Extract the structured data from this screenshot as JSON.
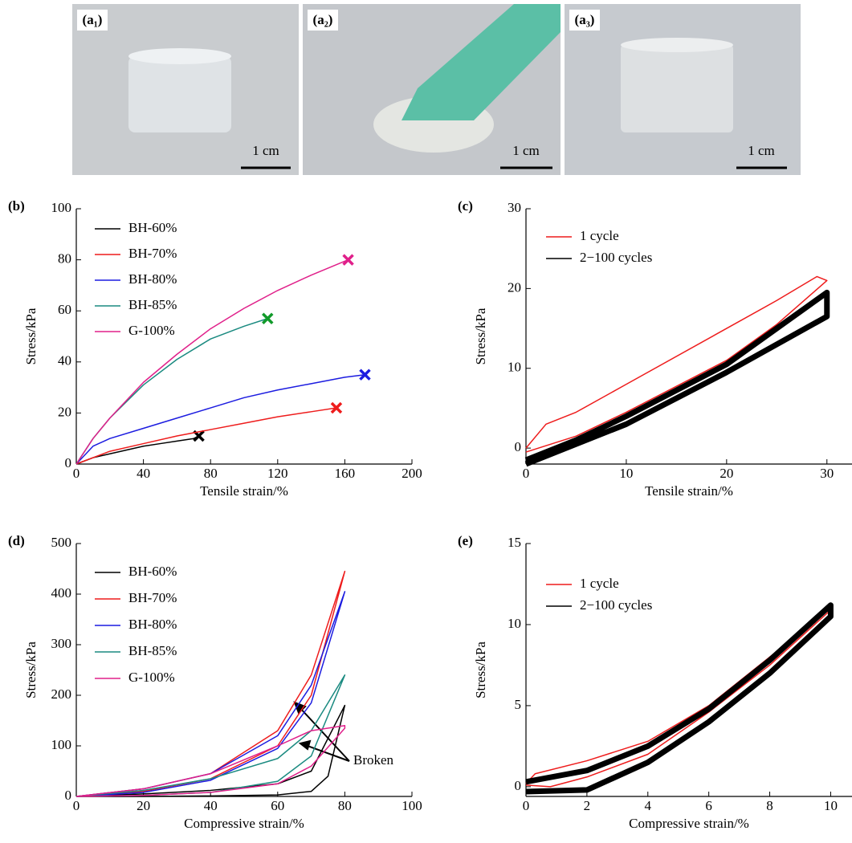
{
  "photos": [
    {
      "label": "(a₁)",
      "scale_bar": "1 cm"
    },
    {
      "label": "(a₂)",
      "scale_bar": "1 cm"
    },
    {
      "label": "(a₃)",
      "scale_bar": "1 cm"
    }
  ],
  "chart_data": [
    {
      "type": "line",
      "panel_label": "(b)",
      "x_label": "Tensile strain/%",
      "y_label": "Stress/kPa",
      "xlim": [
        0,
        200
      ],
      "xticks": [
        0,
        40,
        80,
        120,
        160,
        200
      ],
      "ylim": [
        0,
        100
      ],
      "yticks": [
        0,
        20,
        40,
        60,
        80,
        100
      ],
      "legend": "upper left",
      "end_markers": true,
      "series": [
        {
          "name": "BH-60%",
          "color": "#000000",
          "marker_color": "#000000",
          "x": [
            0,
            10,
            20,
            30,
            40,
            50,
            60,
            70,
            73
          ],
          "values": [
            0,
            2.5,
            4,
            5.5,
            7,
            8,
            9,
            10,
            11
          ]
        },
        {
          "name": "BH-70%",
          "color": "#ee1c1c",
          "marker_color": "#ee1c1c",
          "x": [
            0,
            20,
            40,
            60,
            80,
            100,
            120,
            140,
            155
          ],
          "values": [
            0,
            5,
            8,
            11,
            13.5,
            16,
            18.5,
            20.5,
            22
          ]
        },
        {
          "name": "BH-80%",
          "color": "#1c1ce0",
          "marker_color": "#1c1ce0",
          "x": [
            0,
            10,
            20,
            40,
            60,
            80,
            100,
            120,
            140,
            160,
            172
          ],
          "values": [
            0,
            7,
            10,
            14,
            18,
            22,
            26,
            29,
            31.5,
            34,
            35
          ]
        },
        {
          "name": "BH-85%",
          "color": "#1a8a80",
          "marker_color": "#119a2a",
          "x": [
            0,
            10,
            20,
            40,
            60,
            80,
            100,
            114
          ],
          "values": [
            0,
            10,
            18,
            31,
            41,
            49,
            54,
            57
          ]
        },
        {
          "name": "G-100%",
          "color": "#e0208a",
          "marker_color": "#e0208a",
          "x": [
            0,
            10,
            20,
            40,
            60,
            80,
            100,
            120,
            140,
            162
          ],
          "values": [
            0,
            10,
            18,
            32,
            43,
            53,
            61,
            68,
            74,
            80
          ]
        }
      ]
    },
    {
      "type": "line",
      "panel_label": "(c)",
      "x_label": "Tensile strain/%",
      "y_label": "Stress/kPa",
      "xlim": [
        0,
        32.5
      ],
      "xticks": [
        0,
        10,
        20,
        30
      ],
      "ylim": [
        -2,
        30
      ],
      "yticks": [
        0,
        10,
        20,
        30
      ],
      "legend": "upper left",
      "series": [
        {
          "name": "1 cycle",
          "color": "#ee1c1c",
          "line_width": 1.5,
          "x": [
            0,
            2,
            5,
            10,
            20,
            25,
            29,
            30,
            25,
            20,
            10,
            5,
            0
          ],
          "values": [
            0,
            3,
            4.5,
            8,
            15,
            18.5,
            21.5,
            21,
            15.5,
            11,
            4.5,
            1.5,
            -0.5
          ]
        },
        {
          "name": "2−100 cycles",
          "color": "#000000",
          "line_width": 7,
          "x": [
            0,
            5,
            10,
            20,
            30,
            30,
            20,
            10,
            5,
            0
          ],
          "values": [
            -1.5,
            1,
            4,
            10.5,
            19.5,
            16.5,
            9.5,
            3,
            0.5,
            -2
          ]
        }
      ]
    },
    {
      "type": "line",
      "panel_label": "(d)",
      "x_label": "Compressive strain/%",
      "y_label": "Stress/kPa",
      "xlim": [
        0,
        100
      ],
      "xticks": [
        0,
        20,
        40,
        60,
        80,
        100
      ],
      "ylim": [
        0,
        500
      ],
      "yticks": [
        0,
        100,
        200,
        300,
        400,
        500
      ],
      "legend": "upper left",
      "annotation": "Broken",
      "series": [
        {
          "name": "BH-60%",
          "color": "#000000",
          "x": [
            0,
            20,
            40,
            60,
            70,
            80,
            75,
            70,
            60,
            40,
            20,
            0
          ],
          "values": [
            0,
            5,
            12,
            25,
            50,
            180,
            40,
            10,
            3,
            1,
            0,
            0
          ]
        },
        {
          "name": "BH-70%",
          "color": "#ee1c1c",
          "x": [
            0,
            20,
            40,
            60,
            70,
            80,
            70,
            60,
            40,
            20,
            0
          ],
          "values": [
            0,
            15,
            45,
            130,
            240,
            445,
            200,
            100,
            35,
            10,
            0
          ]
        },
        {
          "name": "BH-80%",
          "color": "#1c1ce0",
          "x": [
            0,
            20,
            40,
            60,
            70,
            80,
            70,
            60,
            40,
            20,
            0
          ],
          "values": [
            0,
            15,
            45,
            120,
            220,
            405,
            185,
            95,
            32,
            8,
            0
          ]
        },
        {
          "name": "BH-85%",
          "color": "#1a8a80",
          "x": [
            0,
            20,
            40,
            60,
            70,
            80,
            70,
            60,
            40,
            20,
            0
          ],
          "values": [
            0,
            12,
            35,
            75,
            130,
            240,
            80,
            30,
            8,
            2,
            0
          ]
        },
        {
          "name": "G-100%",
          "color": "#e0208a",
          "x": [
            0,
            20,
            40,
            60,
            70,
            80,
            80,
            70,
            60,
            40,
            20,
            0
          ],
          "values": [
            0,
            15,
            45,
            100,
            130,
            140,
            135,
            60,
            25,
            8,
            2,
            0
          ]
        }
      ]
    },
    {
      "type": "line",
      "panel_label": "(e)",
      "x_label": "Compressive strain/%",
      "y_label": "Stress/kPa",
      "xlim": [
        0,
        10.7
      ],
      "xticks": [
        0,
        2,
        4,
        6,
        8,
        10
      ],
      "ylim": [
        -0.6,
        15
      ],
      "yticks": [
        0,
        5,
        10,
        15
      ],
      "legend": "upper left",
      "series": [
        {
          "name": "1 cycle",
          "color": "#ee1c1c",
          "line_width": 1.5,
          "x": [
            0,
            0.3,
            2,
            4,
            6,
            8,
            10,
            10,
            8,
            6,
            4,
            2,
            0.8,
            0
          ],
          "values": [
            0.2,
            0.8,
            1.6,
            2.8,
            5,
            8,
            11,
            10.9,
            7.5,
            4.6,
            2,
            0.6,
            0,
            0.1
          ]
        },
        {
          "name": "2−100 cycles",
          "color": "#000000",
          "line_width": 7,
          "x": [
            0,
            2,
            4,
            6,
            8,
            10,
            10,
            8,
            6,
            4,
            2,
            0
          ],
          "values": [
            0.3,
            1,
            2.5,
            4.8,
            7.8,
            11.2,
            10.5,
            7,
            4,
            1.5,
            -0.2,
            -0.3
          ]
        }
      ]
    }
  ]
}
